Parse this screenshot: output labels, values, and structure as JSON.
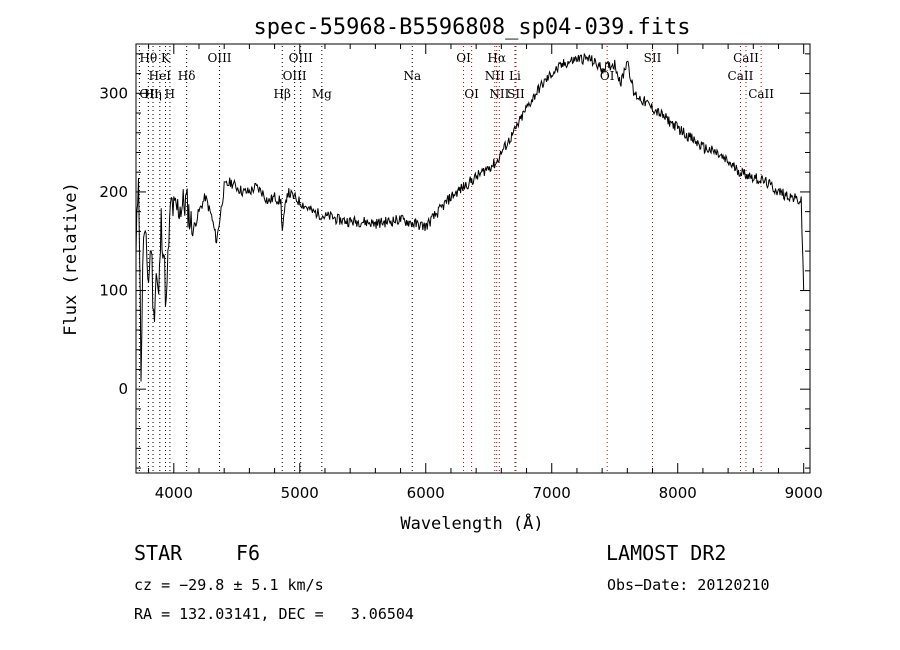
{
  "chart_data": {
    "type": "line",
    "title": "spec-55968-B5596808_sp04-039.fits",
    "xlabel": "Wavelength (Å)",
    "ylabel": "Flux (relative)",
    "xlim": [
      3700,
      9050
    ],
    "ylim": [
      -85,
      350
    ],
    "xticks": [
      4000,
      5000,
      6000,
      7000,
      8000,
      9000
    ],
    "yticks": [
      0,
      100,
      200,
      300
    ],
    "grid": false,
    "series": [
      {
        "x": [
          3700,
          3720,
          3740,
          3760,
          3780,
          3800,
          3820,
          3840,
          3860,
          3880,
          3900,
          3920,
          3940,
          3960,
          3980,
          4000,
          4050,
          4100,
          4150,
          4200,
          4250,
          4300,
          4340,
          4400,
          4450,
          4500,
          4550,
          4600,
          4650,
          4700,
          4750,
          4800,
          4850,
          4861,
          4900,
          4950,
          5000,
          5050,
          5100,
          5150,
          5200,
          5250,
          5300,
          5400,
          5500,
          5600,
          5700,
          5800,
          5900,
          6000,
          6100,
          6200,
          6300,
          6400,
          6500,
          6563,
          6600,
          6700,
          6800,
          6900,
          7000,
          7100,
          7200,
          7300,
          7400,
          7500,
          7550,
          7600,
          7650,
          7700,
          7800,
          7900,
          8000,
          8100,
          8200,
          8300,
          8400,
          8500,
          8600,
          8700,
          8800,
          8900,
          8980,
          9000
        ],
        "values": [
          130,
          230,
          20,
          160,
          140,
          110,
          150,
          70,
          120,
          90,
          170,
          140,
          80,
          150,
          190,
          180,
          185,
          190,
          160,
          180,
          195,
          175,
          150,
          205,
          210,
          205,
          200,
          200,
          205,
          200,
          190,
          195,
          190,
          160,
          200,
          195,
          190,
          185,
          180,
          178,
          175,
          175,
          172,
          170,
          170,
          168,
          170,
          172,
          168,
          165,
          180,
          195,
          205,
          215,
          225,
          230,
          240,
          260,
          285,
          305,
          320,
          330,
          335,
          335,
          325,
          330,
          310,
          335,
          300,
          295,
          285,
          275,
          265,
          255,
          245,
          240,
          230,
          220,
          215,
          210,
          200,
          195,
          190,
          100
        ]
      }
    ],
    "lines": {
      "row1": [
        {
          "label": "Hθ",
          "x": 3798
        },
        {
          "label": "K",
          "x": 3934
        },
        {
          "label": "OIII",
          "x": 4363
        },
        {
          "label": "OIII",
          "x": 5007
        },
        {
          "label": "OI",
          "x": 6300
        },
        {
          "label": "Hα",
          "x": 6563
        },
        {
          "label": "SII",
          "x": 7800
        },
        {
          "label": "CaII",
          "x": 8542
        }
      ],
      "row2": [
        {
          "label": "HeI",
          "x": 3889
        },
        {
          "label": "Hδ",
          "x": 4102
        },
        {
          "label": "OIII",
          "x": 4959
        },
        {
          "label": "Na",
          "x": 5893
        },
        {
          "label": "NII",
          "x": 6548
        },
        {
          "label": "Li",
          "x": 6708
        },
        {
          "label": "OI",
          "x": 7440
        },
        {
          "label": "CaII",
          "x": 8498
        }
      ],
      "row3": [
        {
          "label": "OII",
          "x": 3727
        },
        {
          "label": "Hη",
          "x": 3835
        },
        {
          "label": "H",
          "x": 3969
        },
        {
          "label": "Hβ",
          "x": 4861
        },
        {
          "label": "Mg",
          "x": 5175
        },
        {
          "label": "OI",
          "x": 6364
        },
        {
          "label": "NII",
          "x": 6584
        },
        {
          "label": "SII",
          "x": 6716
        },
        {
          "label": "CaII",
          "x": 8662
        }
      ]
    }
  },
  "info": {
    "class": "STAR",
    "subclass": "F6",
    "survey": "LAMOST DR2",
    "cz": "cz = −29.8 ± 5.1 km/s",
    "obsdate": "Obs−Date: 20120210",
    "radec": "RA = 132.03141, DEC =   3.06504"
  }
}
